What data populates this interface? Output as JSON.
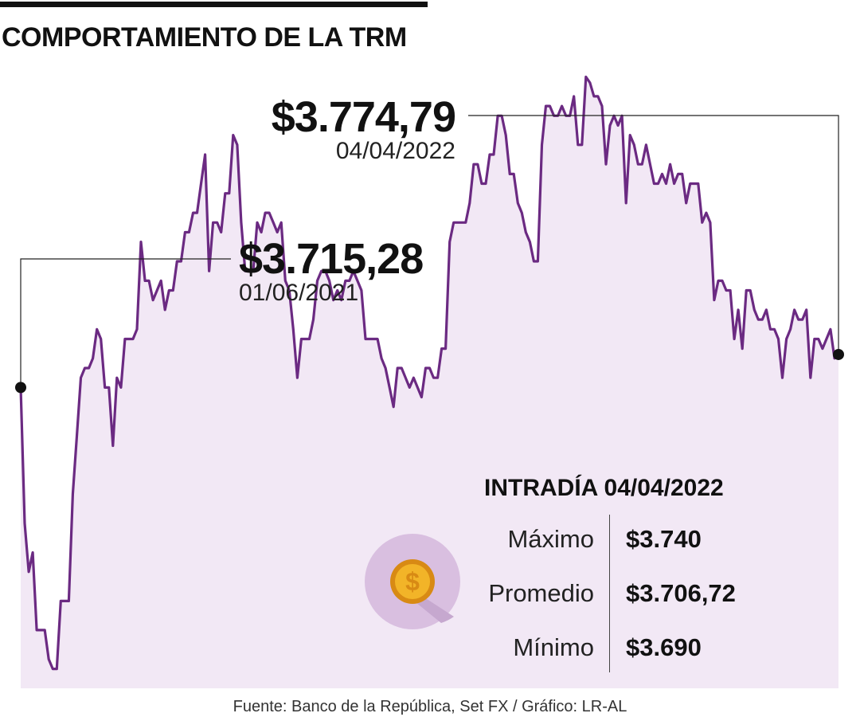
{
  "title": "COMPORTAMIENTO DE LA TRM",
  "colors": {
    "line": "#6b2a82",
    "fill": "#f2e8f5",
    "text": "#111111",
    "coin_circle": "#d9bfe0",
    "coin_shadow": "#c6a8cf",
    "coin_gold": "#f2b428",
    "coin_gold_dark": "#d88a14"
  },
  "chart_data": {
    "type": "area",
    "title": "COMPORTAMIENTO DE LA TRM",
    "xlabel": "",
    "ylabel": "",
    "grid": false,
    "ylim": [
      3460,
      3790
    ],
    "series": [
      {
        "name": "TRM",
        "values": [
          3615,
          3545,
          3520,
          3530,
          3490,
          3490,
          3490,
          3475,
          3470,
          3470,
          3505,
          3505,
          3505,
          3560,
          3590,
          3620,
          3625,
          3625,
          3630,
          3645,
          3640,
          3615,
          3615,
          3585,
          3620,
          3615,
          3640,
          3640,
          3640,
          3645,
          3690,
          3670,
          3670,
          3660,
          3665,
          3670,
          3655,
          3665,
          3665,
          3680,
          3680,
          3695,
          3695,
          3705,
          3705,
          3720,
          3735,
          3675,
          3700,
          3700,
          3695,
          3715,
          3715,
          3745,
          3740,
          3700,
          3675,
          3675,
          3675,
          3700,
          3695,
          3705,
          3705,
          3700,
          3695,
          3700,
          3670,
          3665,
          3645,
          3620,
          3640,
          3640,
          3640,
          3650,
          3670,
          3675,
          3675,
          3670,
          3660,
          3665,
          3660,
          3670,
          3670,
          3675,
          3670,
          3665,
          3640,
          3640,
          3640,
          3640,
          3630,
          3625,
          3615,
          3605,
          3625,
          3625,
          3620,
          3615,
          3620,
          3615,
          3610,
          3625,
          3625,
          3620,
          3620,
          3635,
          3635,
          3690,
          3700,
          3700,
          3700,
          3700,
          3710,
          3730,
          3730,
          3720,
          3720,
          3735,
          3735,
          3755,
          3755,
          3745,
          3725,
          3725,
          3710,
          3705,
          3695,
          3690,
          3680,
          3680,
          3740,
          3760,
          3760,
          3755,
          3755,
          3760,
          3755,
          3755,
          3765,
          3740,
          3740,
          3775,
          3772,
          3765,
          3765,
          3760,
          3730,
          3750,
          3755,
          3750,
          3755,
          3710,
          3745,
          3740,
          3730,
          3730,
          3740,
          3730,
          3720,
          3720,
          3725,
          3720,
          3730,
          3720,
          3725,
          3725,
          3710,
          3720,
          3720,
          3720,
          3700,
          3705,
          3700,
          3660,
          3670,
          3670,
          3665,
          3665,
          3640,
          3655,
          3635,
          3665,
          3665,
          3655,
          3650,
          3650,
          3655,
          3645,
          3645,
          3640,
          3620,
          3640,
          3645,
          3655,
          3650,
          3650,
          3655,
          3620,
          3640,
          3640,
          3635,
          3640,
          3645,
          3630,
          3632
        ]
      }
    ],
    "annotations": [
      {
        "label": "$3.774,79",
        "date": "04/04/2022"
      },
      {
        "label": "$3.715,28",
        "date": "01/06/2021"
      }
    ]
  },
  "annotations": {
    "max": {
      "value": "$3.774,79",
      "date": "04/04/2022"
    },
    "year2021": {
      "value": "$3.715,28",
      "date": "01/06/2021"
    }
  },
  "intraday": {
    "title": "INTRADÍA 04/04/2022",
    "rows": [
      {
        "label": "Máximo",
        "value": "$3.740"
      },
      {
        "label": "Promedio",
        "value": "$3.706,72"
      },
      {
        "label": "Mínimo",
        "value": "$3.690"
      }
    ]
  },
  "source": "Fuente: Banco de la República, Set FX / Gráfico: LR-AL"
}
